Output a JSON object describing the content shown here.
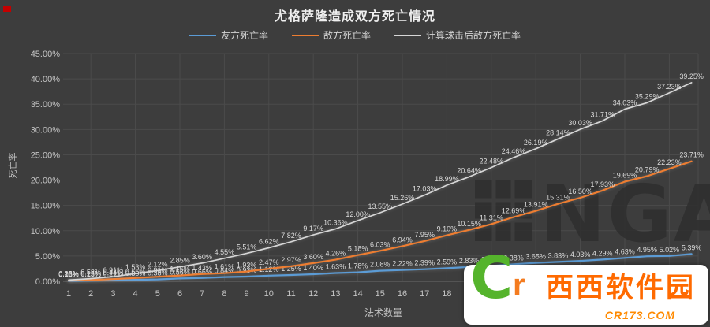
{
  "page": {
    "background": "#3d3d3d"
  },
  "chart_data": {
    "type": "line",
    "title": "尤格萨隆造成双方死亡情况",
    "xlabel": "法术数量",
    "ylabel": "死亡率",
    "x": [
      1,
      2,
      3,
      4,
      5,
      6,
      7,
      8,
      9,
      10,
      11,
      12,
      13,
      14,
      15,
      16,
      17,
      18,
      19,
      20,
      21,
      22,
      23,
      24,
      25,
      26,
      27,
      28,
      29
    ],
    "x_tick_labels": [
      "1",
      "2",
      "3",
      "4",
      "5",
      "6",
      "7",
      "8",
      "9",
      "10",
      "11",
      "12",
      "13",
      "14",
      "15",
      "16",
      "17",
      "18",
      "19"
    ],
    "y_tick_labels": [
      "0.00%",
      "5.00%",
      "10.00%",
      "15.00%",
      "20.00%",
      "25.00%",
      "30.00%",
      "35.00%",
      "40.00%",
      "45.00%"
    ],
    "ylim": [
      0,
      45
    ],
    "ytick_step": 5,
    "grid": true,
    "legend_position": "top",
    "data_labels": true,
    "series": [
      {
        "name": "友方死亡率",
        "key": "friendly-death-rate",
        "color": "#5B9BD5",
        "values": [
          0.06,
          0.13,
          0.21,
          0.3,
          0.38,
          0.56,
          0.66,
          0.84,
          0.93,
          1.12,
          1.25,
          1.4,
          1.63,
          1.78,
          2.08,
          2.22,
          2.39,
          2.59,
          2.83,
          3.04,
          3.38,
          3.65,
          3.83,
          4.03,
          4.29,
          4.63,
          4.95,
          5.02,
          5.39
        ]
      },
      {
        "name": "敌方死亡率",
        "key": "enemy-death-rate",
        "color": "#ED7D31",
        "values": [
          0.13,
          0.25,
          0.44,
          0.66,
          0.91,
          1.16,
          1.43,
          1.61,
          1.93,
          2.47,
          2.97,
          3.6,
          4.26,
          5.18,
          6.03,
          6.94,
          7.95,
          9.1,
          10.15,
          11.31,
          12.69,
          13.91,
          15.31,
          16.5,
          17.93,
          19.69,
          20.79,
          22.23,
          23.71
        ]
      },
      {
        "name": "计算球击后敌方死亡率",
        "key": "enemy-death-rate-after-orb",
        "color": "#D6D6D6",
        "values": [
          0.25,
          0.53,
          0.91,
          1.53,
          2.12,
          2.85,
          3.6,
          4.55,
          5.51,
          6.62,
          7.82,
          9.17,
          10.36,
          12.0,
          13.55,
          15.26,
          17.03,
          18.99,
          20.64,
          22.48,
          24.46,
          26.19,
          28.14,
          30.03,
          31.71,
          34.03,
          35.29,
          37.23,
          39.25
        ]
      }
    ]
  },
  "watermark": {
    "text": "NGA"
  },
  "logo": {
    "big_c": "C",
    "small_r": "r",
    "site_name": "西西软件园",
    "domain": "CR173.COM"
  }
}
